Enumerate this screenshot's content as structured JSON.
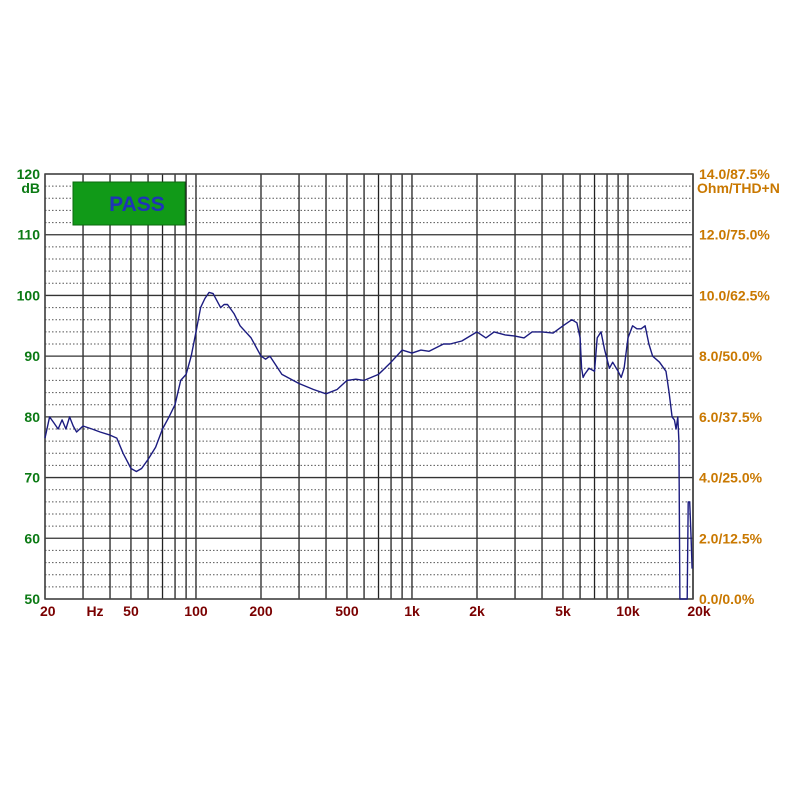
{
  "chart_data": {
    "type": "line",
    "xscale": "log",
    "xlim": [
      20,
      20000
    ],
    "ylim": [
      50,
      120
    ],
    "grid": true,
    "status_badge": {
      "label": "PASS",
      "color": "#119a18",
      "text_color": "#1f33b8"
    },
    "left_axis": {
      "unit": "dB",
      "ticks": [
        "120",
        "110",
        "100",
        "90",
        "80",
        "70",
        "60",
        "50"
      ],
      "tick_values": [
        120,
        110,
        100,
        90,
        80,
        70,
        60,
        50
      ],
      "color": "#0b7a14"
    },
    "right_axis": {
      "unit": "Ohm/THD+N",
      "ticks": [
        "14.0/87.5%",
        "12.0/75.0%",
        "10.0/62.5%",
        "8.0/50.0%",
        "6.0/37.5%",
        "4.0/25.0%",
        "2.0/12.5%",
        "0.0/0.0%"
      ],
      "color": "#c97800"
    },
    "x_axis": {
      "unit": "Hz",
      "ticks": [
        "20",
        "50",
        "100",
        "200",
        "500",
        "1k",
        "2k",
        "5k",
        "10k",
        "20k"
      ],
      "tick_values": [
        20,
        50,
        100,
        200,
        500,
        1000,
        2000,
        5000,
        10000,
        20000
      ],
      "color": "#7a0000"
    },
    "series": [
      {
        "color": "#1c1c80",
        "x": [
          20,
          21,
          22,
          23,
          24,
          25,
          26,
          27,
          28,
          30,
          33,
          36,
          40,
          43,
          46,
          50,
          53,
          56,
          60,
          65,
          70,
          75,
          80,
          85,
          90,
          95,
          100,
          105,
          110,
          115,
          120,
          130,
          135,
          140,
          150,
          160,
          180,
          200,
          210,
          220,
          250,
          300,
          350,
          400,
          450,
          500,
          550,
          600,
          700,
          800,
          900,
          1000,
          1100,
          1200,
          1400,
          1500,
          1700,
          2000,
          2200,
          2400,
          2700,
          3000,
          3300,
          3600,
          4000,
          4500,
          5000,
          5500,
          5800,
          6000,
          6100,
          6200,
          6300,
          6600,
          7000,
          7200,
          7500,
          7800,
          8200,
          8500,
          9000,
          9300,
          9600,
          10000,
          10500,
          11000,
          11500,
          12000,
          12500,
          13000,
          14000,
          15000,
          15500,
          16000,
          16400,
          16700,
          17000,
          17200,
          17400,
          18000,
          18600,
          18800,
          19000,
          19300,
          19600,
          19800
        ],
        "y": [
          76.5,
          80,
          79,
          78,
          79.5,
          78,
          80,
          78.5,
          77.5,
          78.5,
          78,
          77.5,
          77,
          76.5,
          74,
          71.5,
          71,
          71.5,
          73,
          75,
          78,
          80,
          82,
          86,
          87,
          90,
          94,
          98,
          99.5,
          100.5,
          100.3,
          98,
          98.5,
          98.5,
          97,
          95,
          93,
          90,
          89.5,
          90,
          87,
          85.5,
          84.5,
          83.8,
          84.5,
          86,
          86.2,
          86,
          87,
          89,
          91,
          90.5,
          91,
          90.8,
          92,
          92,
          92.5,
          94,
          93,
          94,
          93.5,
          93.3,
          93,
          94,
          94,
          93.8,
          95,
          96,
          95.5,
          93,
          88,
          86.5,
          87,
          88,
          87.5,
          93,
          94,
          91,
          88,
          89,
          87.5,
          86.5,
          88,
          93,
          95,
          94.5,
          94.5,
          95,
          92,
          90,
          89,
          87.5,
          84,
          80,
          79.5,
          78,
          80,
          76,
          50,
          50,
          50,
          50,
          66,
          66,
          60,
          55
        ]
      }
    ]
  }
}
